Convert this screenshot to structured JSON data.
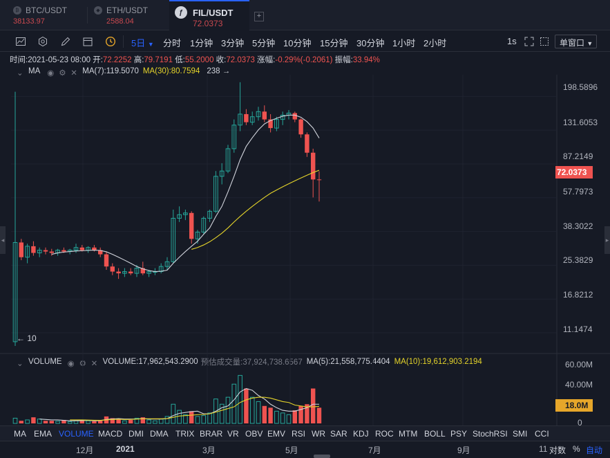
{
  "tabs": [
    {
      "symbol": "BTC/USDT",
      "price": "38133.97",
      "active": false
    },
    {
      "symbol": "ETH/USDT",
      "price": "2588.04",
      "active": false
    },
    {
      "symbol": "FIL/USDT",
      "price": "72.0373",
      "active": true
    }
  ],
  "add_tab": "+",
  "toolbar": {
    "intervals": [
      "5日",
      "分时",
      "1分钟",
      "3分钟",
      "5分钟",
      "10分钟",
      "15分钟",
      "30分钟",
      "1小时",
      "2小时"
    ],
    "active_interval": "5日",
    "period": "1s",
    "window_mode": "单窗口"
  },
  "infoline": {
    "time_label": "时间:",
    "time": "2021-05-23 08:00",
    "open_label": "开:",
    "open": "72.2252",
    "high_label": "高:",
    "high": "79.7191",
    "low_label": "低:",
    "low": "55.2000",
    "close_label": "收:",
    "close": "72.0373",
    "change_label": "涨幅:",
    "change": "-0.29%(-0.2061)",
    "amp_label": "振幅:",
    "amp": "33.94%"
  },
  "main_legend": {
    "name": "MA",
    "ma7": "MA(7):119.5070",
    "ma30": "MA(30):80.7594",
    "extra": "238 →"
  },
  "vol_legend": {
    "name": "VOLUME",
    "volume": "VOLUME:17,962,543.2900",
    "estimated": "预估成交量:37,924,738.6567",
    "ma5": "MA(5):21,558,775.4404",
    "ma10": "MA(10):19,612,903.2194"
  },
  "price_axis": [
    "198.5896",
    "131.6053",
    "87.2149",
    "57.7973",
    "38.3022",
    "25.3829",
    "16.8212",
    "11.1474"
  ],
  "current_price": "72.0373",
  "vol_axis": [
    "60.00M",
    "40.00M",
    "0"
  ],
  "current_volume": "18.0M",
  "low_marker": "← 10",
  "indicators": [
    "MA",
    "EMA",
    "VOLUME",
    "MACD",
    "DMI",
    "DMA",
    "TRIX",
    "BRAR",
    "VR",
    "OBV",
    "EMV",
    "RSI",
    "WR",
    "SAR",
    "KDJ",
    "ROC",
    "MTM",
    "BOLL",
    "PSY",
    "StochRSI",
    "SMI",
    "CCI"
  ],
  "active_indicator": "VOLUME",
  "x_labels": [
    "12月",
    "2021",
    "3月",
    "5月",
    "7月",
    "9月",
    "11"
  ],
  "scale_buttons": [
    "对数",
    "%",
    "自动"
  ],
  "colors": {
    "up": "#26a69a",
    "down": "#ef5350",
    "ma7": "#d1d4dc",
    "ma30": "#e5d42a",
    "accent": "#2962ff",
    "bg": "#161a25"
  },
  "chart_data": {
    "type": "candlestick",
    "scale": "log",
    "ylim": [
      9.5,
      250
    ],
    "volume_ylim": [
      0,
      65
    ],
    "volume_unit": "M",
    "candles": [
      {
        "o": 10.0,
        "h": 210,
        "l": 9.5,
        "c": 33.5,
        "v": 6
      },
      {
        "o": 33.5,
        "h": 35,
        "l": 27,
        "c": 28,
        "v": 3
      },
      {
        "o": 28,
        "h": 33,
        "l": 26,
        "c": 32,
        "v": 4
      },
      {
        "o": 32,
        "h": 34,
        "l": 28.5,
        "c": 29.5,
        "v": 7
      },
      {
        "o": 29.5,
        "h": 31.5,
        "l": 28,
        "c": 30.5,
        "v": 5
      },
      {
        "o": 30.5,
        "h": 31.5,
        "l": 29,
        "c": 30,
        "v": 3
      },
      {
        "o": 30,
        "h": 31,
        "l": 28.5,
        "c": 29.5,
        "v": 3
      },
      {
        "o": 29.5,
        "h": 31,
        "l": 28.5,
        "c": 30.5,
        "v": 2.5
      },
      {
        "o": 30.5,
        "h": 31.5,
        "l": 29.5,
        "c": 30,
        "v": 4
      },
      {
        "o": 30,
        "h": 31,
        "l": 29,
        "c": 30.5,
        "v": 2
      },
      {
        "o": 30.5,
        "h": 33,
        "l": 29.5,
        "c": 31.5,
        "v": 3
      },
      {
        "o": 31.5,
        "h": 32.5,
        "l": 30,
        "c": 30.5,
        "v": 4
      },
      {
        "o": 30.5,
        "h": 32,
        "l": 29.5,
        "c": 31.5,
        "v": 3
      },
      {
        "o": 31.5,
        "h": 32.5,
        "l": 30,
        "c": 30.5,
        "v": 2.5
      },
      {
        "o": 30.5,
        "h": 31.5,
        "l": 28,
        "c": 29,
        "v": 4
      },
      {
        "o": 29,
        "h": 30,
        "l": 24,
        "c": 25,
        "v": 8
      },
      {
        "o": 25,
        "h": 26,
        "l": 22.5,
        "c": 23.5,
        "v": 6
      },
      {
        "o": 23.5,
        "h": 24.5,
        "l": 21.5,
        "c": 23,
        "v": 5
      },
      {
        "o": 23,
        "h": 24.5,
        "l": 22,
        "c": 23.5,
        "v": 3
      },
      {
        "o": 23.5,
        "h": 24.5,
        "l": 22.5,
        "c": 23,
        "v": 4
      },
      {
        "o": 23,
        "h": 25.5,
        "l": 22,
        "c": 24.5,
        "v": 6
      },
      {
        "o": 24.5,
        "h": 26.5,
        "l": 22.5,
        "c": 23,
        "v": 7
      },
      {
        "o": 23,
        "h": 24,
        "l": 22,
        "c": 23.5,
        "v": 4
      },
      {
        "o": 23.5,
        "h": 24.5,
        "l": 22.5,
        "c": 23.5,
        "v": 3
      },
      {
        "o": 23.5,
        "h": 26,
        "l": 23,
        "c": 25,
        "v": 5
      },
      {
        "o": 25,
        "h": 28,
        "l": 24,
        "c": 26.5,
        "v": 8
      },
      {
        "o": 26.5,
        "h": 50,
        "l": 26,
        "c": 45,
        "v": 22
      },
      {
        "o": 45,
        "h": 52,
        "l": 43,
        "c": 47,
        "v": 15
      },
      {
        "o": 47,
        "h": 50,
        "l": 44,
        "c": 48,
        "v": 10
      },
      {
        "o": 48,
        "h": 49,
        "l": 33,
        "c": 35,
        "v": 14
      },
      {
        "o": 35,
        "h": 39,
        "l": 33,
        "c": 38,
        "v": 8
      },
      {
        "o": 38,
        "h": 46,
        "l": 37,
        "c": 45,
        "v": 9
      },
      {
        "o": 45,
        "h": 50,
        "l": 43,
        "c": 49,
        "v": 12
      },
      {
        "o": 49,
        "h": 80,
        "l": 48,
        "c": 75,
        "v": 28
      },
      {
        "o": 75,
        "h": 88,
        "l": 68,
        "c": 80,
        "v": 22
      },
      {
        "o": 80,
        "h": 110,
        "l": 78,
        "c": 105,
        "v": 30
      },
      {
        "o": 105,
        "h": 150,
        "l": 100,
        "c": 140,
        "v": 45
      },
      {
        "o": 140,
        "h": 236,
        "l": 130,
        "c": 160,
        "v": 55
      },
      {
        "o": 160,
        "h": 170,
        "l": 140,
        "c": 145,
        "v": 40
      },
      {
        "o": 145,
        "h": 165,
        "l": 140,
        "c": 155,
        "v": 30
      },
      {
        "o": 155,
        "h": 175,
        "l": 148,
        "c": 165,
        "v": 25
      },
      {
        "o": 165,
        "h": 178,
        "l": 145,
        "c": 150,
        "v": 20
      },
      {
        "o": 150,
        "h": 160,
        "l": 128,
        "c": 135,
        "v": 18
      },
      {
        "o": 135,
        "h": 155,
        "l": 130,
        "c": 150,
        "v": 14
      },
      {
        "o": 150,
        "h": 165,
        "l": 140,
        "c": 158,
        "v": 12
      },
      {
        "o": 158,
        "h": 168,
        "l": 150,
        "c": 162,
        "v": 10
      },
      {
        "o": 162,
        "h": 165,
        "l": 145,
        "c": 150,
        "v": 15
      },
      {
        "o": 150,
        "h": 152,
        "l": 120,
        "c": 125,
        "v": 20
      },
      {
        "o": 125,
        "h": 128,
        "l": 95,
        "c": 100,
        "v": 22
      },
      {
        "o": 100,
        "h": 105,
        "l": 58,
        "c": 72.2,
        "v": 40
      },
      {
        "o": 72.2,
        "h": 79.7,
        "l": 55.2,
        "c": 72.04,
        "v": 18
      }
    ],
    "ma7": [
      null,
      null,
      null,
      null,
      null,
      null,
      29,
      29.5,
      29.8,
      30,
      30.2,
      30.3,
      30.4,
      30.5,
      30.4,
      29.9,
      29,
      28,
      27,
      26,
      25,
      24.3,
      23.8,
      23.5,
      23.6,
      23.9,
      26,
      28,
      30,
      32,
      34,
      37,
      40,
      46,
      52,
      62,
      75,
      92,
      108,
      120,
      132,
      142,
      148,
      152,
      156,
      158,
      158,
      154,
      146,
      135,
      119.5
    ],
    "ma30": [
      null,
      null,
      null,
      null,
      null,
      null,
      null,
      null,
      null,
      null,
      null,
      null,
      null,
      null,
      null,
      null,
      null,
      null,
      null,
      null,
      null,
      null,
      null,
      null,
      null,
      null,
      null,
      null,
      null,
      30.8,
      31.5,
      32.5,
      33.8,
      35.5,
      37.5,
      40,
      43,
      46,
      49,
      52,
      55,
      58,
      61,
      63.5,
      66,
      68.5,
      71,
      73.5,
      76,
      78.5,
      80.76
    ],
    "vol_ma5": [
      null,
      null,
      null,
      null,
      5,
      4.5,
      4,
      4,
      3.5,
      3,
      3,
      3.2,
      3.5,
      3,
      3.2,
      4.5,
      5,
      5.5,
      5,
      5,
      5,
      5.5,
      5,
      5,
      5,
      5.5,
      9,
      11.5,
      12.5,
      13.5,
      14,
      11,
      11,
      14,
      18,
      20,
      27,
      36,
      40,
      38,
      32,
      28,
      22,
      18,
      15,
      14,
      14,
      16,
      18,
      22,
      22
    ],
    "vol_ma10": [
      null,
      null,
      null,
      null,
      null,
      null,
      null,
      null,
      null,
      4,
      4,
      4,
      3.8,
      3.6,
      3.5,
      4,
      4.5,
      4.8,
      4.5,
      4.6,
      5,
      5.3,
      5.3,
      5.3,
      5.3,
      5.5,
      7,
      8.5,
      9,
      9.5,
      10,
      10.3,
      11,
      13,
      15,
      17,
      19,
      24,
      27,
      29,
      30,
      30,
      29,
      27,
      25,
      24,
      21,
      20,
      19,
      19,
      19.6
    ]
  }
}
